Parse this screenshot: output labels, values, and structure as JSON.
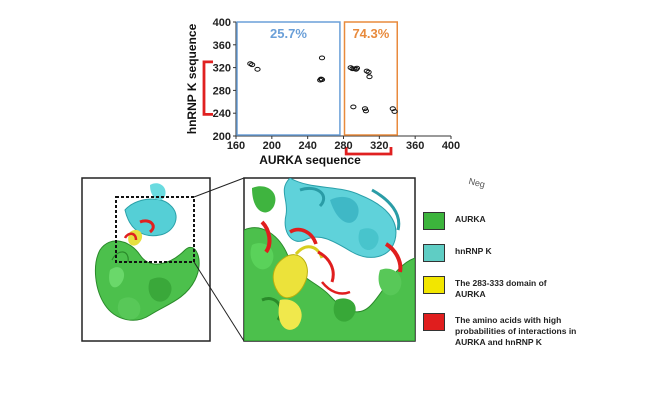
{
  "chart_data": {
    "type": "scatter",
    "xlabel": "AURKA sequence",
    "ylabel": "hnRNP K sequence",
    "xlim": [
      160,
      400
    ],
    "ylim": [
      200,
      400
    ],
    "x_ticks": [
      "160",
      "200",
      "240",
      "280",
      "320",
      "360",
      "400"
    ],
    "y_ticks": [
      "200",
      "240",
      "280",
      "320",
      "360",
      "400"
    ],
    "regions": [
      {
        "label": "25.7%",
        "x_range": [
          160,
          276
        ],
        "color": "#6a9fd8"
      },
      {
        "label": "74.3%",
        "x_range": [
          280,
          340
        ],
        "color": "#e88a3c"
      }
    ],
    "points": [
      {
        "x": 176,
        "y": 327
      },
      {
        "x": 178,
        "y": 325
      },
      {
        "x": 184,
        "y": 317
      },
      {
        "x": 256,
        "y": 337
      },
      {
        "x": 254,
        "y": 298
      },
      {
        "x": 255,
        "y": 300
      },
      {
        "x": 256,
        "y": 299
      },
      {
        "x": 288,
        "y": 320
      },
      {
        "x": 290,
        "y": 318
      },
      {
        "x": 292,
        "y": 318
      },
      {
        "x": 294,
        "y": 317
      },
      {
        "x": 295,
        "y": 319
      },
      {
        "x": 306,
        "y": 314
      },
      {
        "x": 308,
        "y": 312
      },
      {
        "x": 309,
        "y": 304
      },
      {
        "x": 291,
        "y": 251
      },
      {
        "x": 304,
        "y": 248
      },
      {
        "x": 305,
        "y": 244
      },
      {
        "x": 335,
        "y": 248
      },
      {
        "x": 337,
        "y": 243
      }
    ],
    "brackets": [
      {
        "axis": "y",
        "from": 238,
        "to": 330,
        "color": "#e02020"
      },
      {
        "axis": "x",
        "from": 283,
        "to": 333,
        "color": "#e02020"
      }
    ]
  },
  "legend": [
    {
      "label": "AURKA",
      "color": "#3cb43c"
    },
    {
      "label": "hnRNP K",
      "color": "#5fcdc4"
    },
    {
      "label": "The  283-333 domain of AURKA",
      "color": "#f2e600"
    },
    {
      "label": "The amino acids with high probabilities of interactions in AURKA and hnRNP K",
      "color": "#e01e1e"
    }
  ],
  "corner_text": "Neg"
}
